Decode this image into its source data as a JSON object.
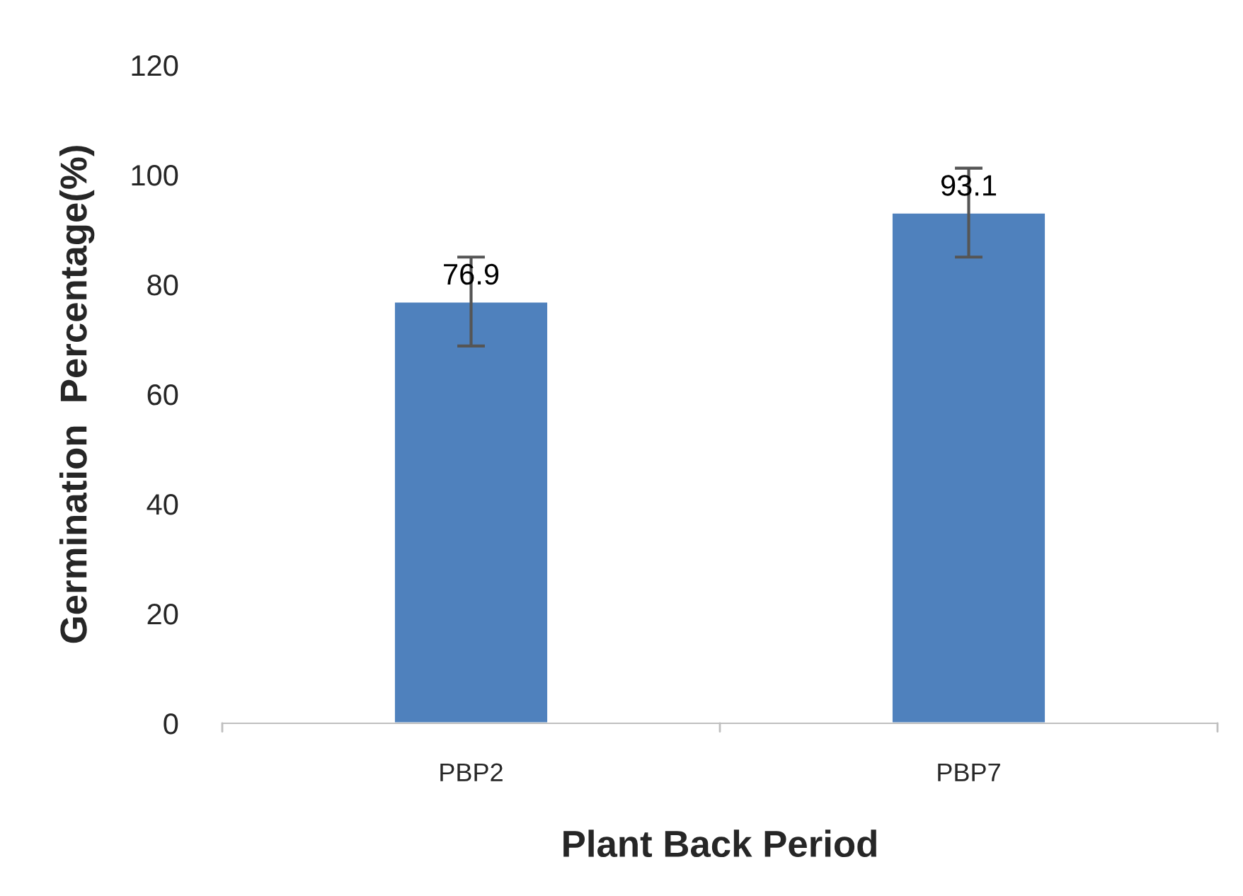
{
  "chart_data": {
    "type": "bar",
    "xlabel": "Plant Back Period",
    "ylabel": "Germination  Percentage(%)",
    "categories": [
      "PBP2",
      "PBP7"
    ],
    "values": [
      76.9,
      93.1
    ],
    "errors": [
      8.1,
      8.1
    ],
    "color": "#4f81bd",
    "data_labels": true,
    "ylim": [
      0,
      120
    ],
    "yticks": [
      0,
      20,
      40,
      60,
      80,
      100,
      120
    ],
    "grid": false,
    "legend": false
  }
}
